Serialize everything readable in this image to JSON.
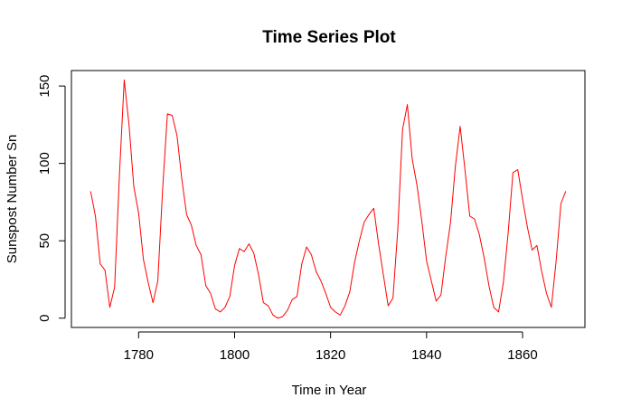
{
  "chart_data": {
    "type": "line",
    "title": "Time Series Plot",
    "xlabel": "Time in Year",
    "ylabel": "Sunspost Number Sn",
    "xlim": [
      1766,
      1873
    ],
    "ylim": [
      -6,
      160
    ],
    "xticks": [
      1780,
      1800,
      1820,
      1840,
      1860
    ],
    "yticks": [
      0,
      50,
      100,
      150
    ],
    "grid": false,
    "color": "#ff0000",
    "series": [
      {
        "x": [
          1770,
          1771,
          1772,
          1773,
          1774,
          1775,
          1776,
          1777,
          1778,
          1779,
          1780,
          1781,
          1782,
          1783,
          1784,
          1785,
          1786,
          1787,
          1788,
          1789,
          1790,
          1791,
          1792,
          1793,
          1794,
          1795,
          1796,
          1797,
          1798,
          1799,
          1800,
          1801,
          1802,
          1803,
          1804,
          1805,
          1806,
          1807,
          1808,
          1809,
          1810,
          1811,
          1812,
          1813,
          1814,
          1815,
          1816,
          1817,
          1818,
          1819,
          1820,
          1821,
          1822,
          1823,
          1824,
          1825,
          1826,
          1827,
          1828,
          1829,
          1830,
          1831,
          1832,
          1833,
          1834,
          1835,
          1836,
          1837,
          1838,
          1839,
          1840,
          1841,
          1842,
          1843,
          1844,
          1845,
          1846,
          1847,
          1848,
          1849,
          1850,
          1851,
          1852,
          1853,
          1854,
          1855,
          1856,
          1857,
          1858,
          1859,
          1860,
          1861,
          1862,
          1863,
          1864,
          1865,
          1866,
          1867,
          1868,
          1869
        ],
        "values": [
          82,
          66,
          35,
          31,
          7,
          20,
          92,
          154,
          125,
          85,
          68,
          38,
          23,
          10,
          24,
          83,
          132,
          131,
          118,
          90,
          67,
          60,
          47,
          41,
          21,
          16,
          6,
          4,
          7,
          14,
          34,
          45,
          43,
          48,
          42,
          28,
          10,
          8,
          2,
          0,
          1,
          5,
          12,
          14,
          35,
          46,
          41,
          30,
          24,
          16,
          7,
          4,
          2,
          8,
          17,
          36,
          50,
          62,
          67,
          71,
          48,
          28,
          8,
          13,
          57,
          122,
          138,
          103,
          86,
          63,
          37,
          24,
          11,
          15,
          40,
          62,
          98,
          124,
          96,
          66,
          64,
          54,
          39,
          21,
          7,
          4,
          23,
          55,
          94,
          96,
          77,
          59,
          44,
          47,
          30,
          16,
          7,
          37,
          74,
          82
        ]
      }
    ]
  }
}
